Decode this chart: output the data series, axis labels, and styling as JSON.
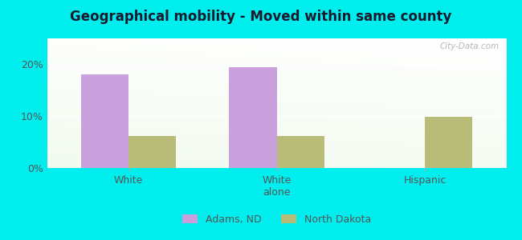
{
  "title": "Geographical mobility - Moved within same county",
  "categories": [
    "White",
    "White\nalone",
    "Hispanic"
  ],
  "adams_values": [
    18.0,
    19.5,
    0.0
  ],
  "nd_values": [
    6.2,
    6.2,
    9.9
  ],
  "adams_color": "#c9a0dc",
  "nd_color": "#b8bc78",
  "bg_outer": "#00EEEE",
  "title_fontsize": 12,
  "ylim": [
    0,
    25
  ],
  "yticks": [
    0,
    10,
    20
  ],
  "ytick_labels": [
    "0%",
    "10%",
    "20%"
  ],
  "bar_width": 0.32,
  "legend_labels": [
    "Adams, ND",
    "North Dakota"
  ],
  "watermark": "City-Data.com",
  "tick_color": "#777777",
  "label_color": "#555555"
}
